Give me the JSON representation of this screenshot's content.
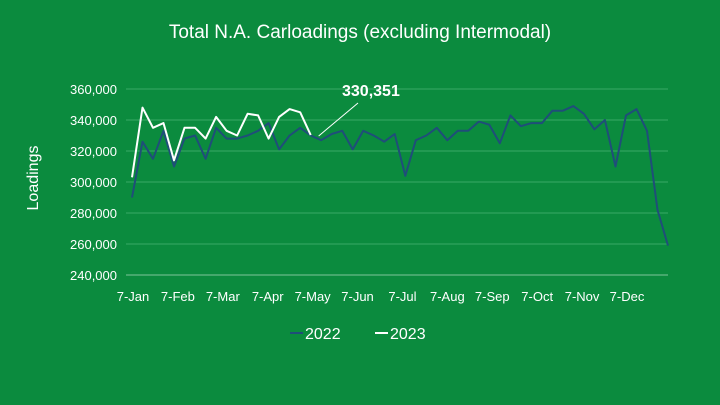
{
  "chart_data": {
    "type": "line",
    "title": "Total N.A. Carloadings (excluding Intermodal)",
    "ylabel": "Loadings",
    "xlabel": "",
    "ylim": [
      240000,
      360000
    ],
    "yticks": [
      "240,000",
      "260,000",
      "280,000",
      "300,000",
      "320,000",
      "340,000",
      "360,000"
    ],
    "ytick_values": [
      240000,
      260000,
      280000,
      300000,
      320000,
      340000,
      360000
    ],
    "xtick_labels": [
      "7-Jan",
      "7-Feb",
      "7-Mar",
      "7-Apr",
      "7-May",
      "7-Jun",
      "7-Jul",
      "7-Aug",
      "7-Sep",
      "7-Oct",
      "7-Nov",
      "7-Dec"
    ],
    "grid": "horizontal",
    "legend_position": "bottom",
    "series": [
      {
        "name": "2022",
        "color": "#1f4e79",
        "values": [
          290000,
          326000,
          315000,
          333000,
          310000,
          328000,
          330000,
          315000,
          335000,
          328000,
          328000,
          330000,
          333000,
          338000,
          321000,
          330000,
          335000,
          330000,
          327000,
          331000,
          333000,
          321000,
          333000,
          330000,
          326000,
          331000,
          304000,
          327000,
          330000,
          335000,
          327000,
          333000,
          333000,
          339000,
          337000,
          325000,
          343000,
          336000,
          338000,
          338000,
          346000,
          346000,
          349000,
          344000,
          334000,
          340000,
          310000,
          343000,
          347000,
          333000,
          282000,
          259000
        ]
      },
      {
        "name": "2023",
        "color": "#ffffff",
        "values": [
          303000,
          348000,
          335000,
          338000,
          314000,
          335000,
          335000,
          328000,
          342000,
          333000,
          330000,
          344000,
          343000,
          328000,
          342000,
          347000,
          345000,
          330351
        ]
      }
    ],
    "annotations": [
      {
        "text": "330,351",
        "series": "2023",
        "point_index": 17
      }
    ]
  }
}
